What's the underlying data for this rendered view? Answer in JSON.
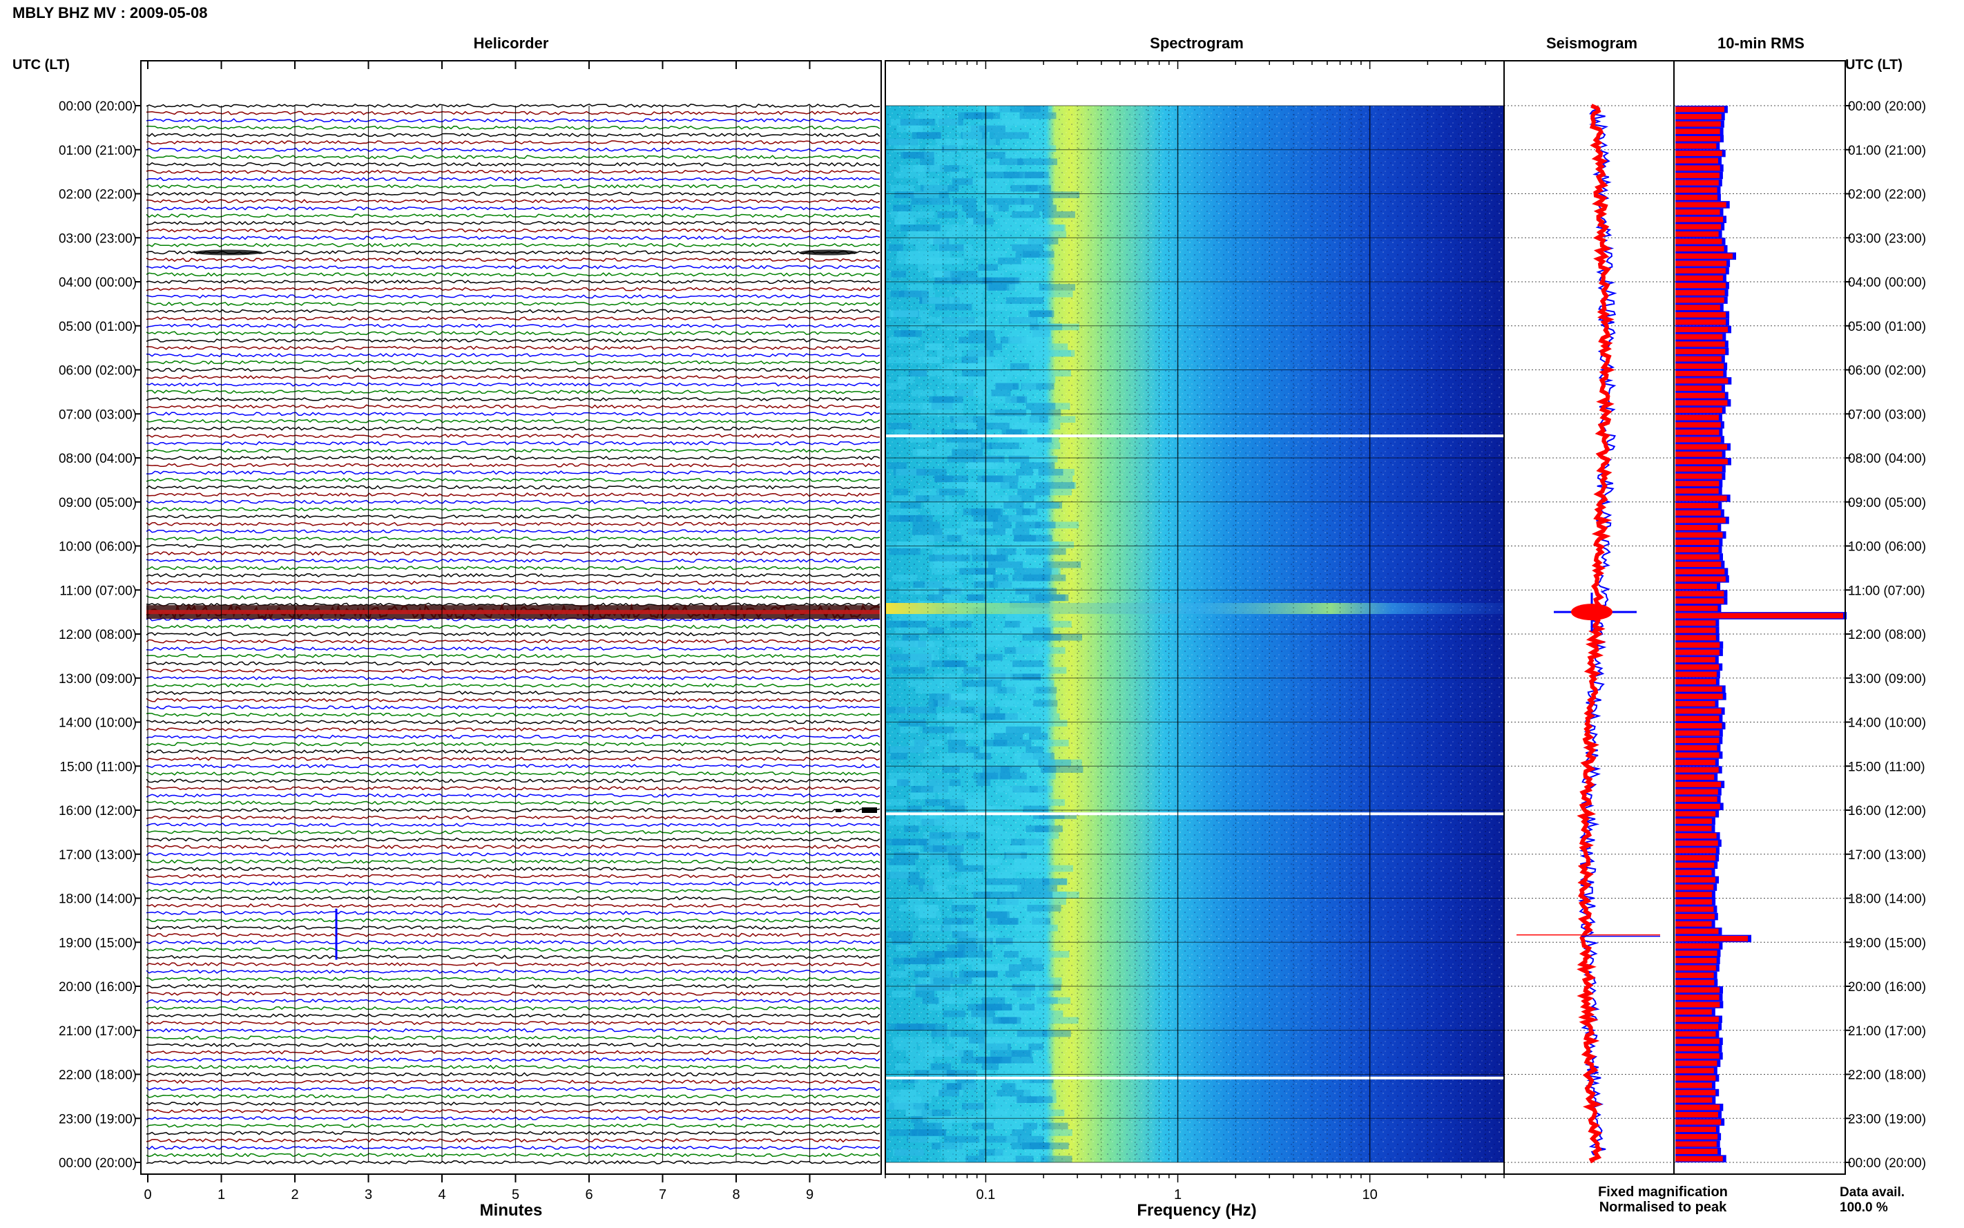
{
  "title": "MBLY BHZ MV : 2009-05-08",
  "utc_header": "UTC (LT)",
  "panels": {
    "helicorder": "Helicorder",
    "spectrogram": "Spectrogram",
    "seismogram": "Seismogram",
    "rms": "10-min RMS"
  },
  "legend": {
    "fixed": "Fixed magnification",
    "fixed_color": "#0000ff",
    "normalised": "Normalised to peak",
    "normalised_color": "#ff0000"
  },
  "data_avail": {
    "label": "Data avail.",
    "value": "100.0 %"
  },
  "chart_data": [
    {
      "type": "line",
      "panel": "helicorder",
      "xlabel": "Minutes",
      "xlim": [
        0,
        10
      ],
      "x_ticks": [
        "0",
        "1",
        "2",
        "3",
        "4",
        "5",
        "6",
        "7",
        "8",
        "9"
      ],
      "hours_utc": [
        "00:00 (20:00)",
        "01:00 (21:00)",
        "02:00 (22:00)",
        "03:00 (23:00)",
        "04:00 (00:00)",
        "05:00 (01:00)",
        "06:00 (02:00)",
        "07:00 (03:00)",
        "08:00 (04:00)",
        "09:00 (05:00)",
        "10:00 (06:00)",
        "11:00 (07:00)",
        "12:00 (08:00)",
        "13:00 (09:00)",
        "14:00 (10:00)",
        "15:00 (11:00)",
        "16:00 (12:00)",
        "17:00 (13:00)",
        "18:00 (14:00)",
        "19:00 (15:00)",
        "20:00 (16:00)",
        "21:00 (17:00)",
        "22:00 (18:00)",
        "23:00 (19:00)",
        "00:00 (20:00)"
      ],
      "traces_per_hour": 6,
      "trace_colors": [
        "#000000",
        "#8b0000",
        "#0000ff",
        "#008000"
      ],
      "events": [
        {
          "time_utc": "03:20",
          "type": "noise burst"
        },
        {
          "time_utc": "11:30",
          "type": "large event"
        },
        {
          "time_utc": "16:00",
          "type": "burst"
        },
        {
          "time_utc": "18:50",
          "type": "spike"
        }
      ]
    },
    {
      "type": "heatmap",
      "panel": "spectrogram",
      "xlabel": "Frequency (Hz)",
      "x_scale": "log",
      "xlim": [
        0.03,
        50
      ],
      "x_ticks": [
        "0.1",
        "1",
        "10"
      ],
      "band_peak_hz": [
        0.2,
        0.6
      ],
      "gaps_utc": [
        "07:30",
        "16:05",
        "22:05"
      ],
      "event_utc": "11:30"
    },
    {
      "type": "line",
      "panel": "seismogram",
      "series": [
        {
          "name": "Fixed magnification",
          "color": "#0000ff"
        },
        {
          "name": "Normalised to peak",
          "color": "#ff0000"
        }
      ],
      "event_utc": [
        "11:30",
        "18:50"
      ]
    },
    {
      "type": "bar",
      "panel": "rms",
      "orientation": "horizontal",
      "interval_minutes": 10,
      "peaks_utc": [
        "03:20",
        "11:30",
        "18:50"
      ]
    }
  ]
}
